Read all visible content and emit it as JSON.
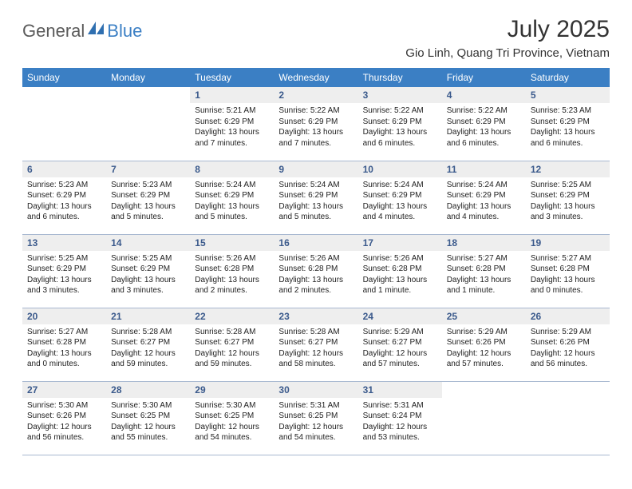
{
  "logo": {
    "general": "General",
    "blue": "Blue"
  },
  "title": "July 2025",
  "location": "Gio Linh, Quang Tri Province, Vietnam",
  "header_bg": "#3b7fc4",
  "daynum_bg": "#eeeeee",
  "daynum_color": "#3b5a8c",
  "row_border": "#a8b8d0",
  "weekdays": [
    "Sunday",
    "Monday",
    "Tuesday",
    "Wednesday",
    "Thursday",
    "Friday",
    "Saturday"
  ],
  "weeks": [
    [
      null,
      null,
      {
        "n": "1",
        "sr": "5:21 AM",
        "ss": "6:29 PM",
        "dl": "13 hours and 7 minutes."
      },
      {
        "n": "2",
        "sr": "5:22 AM",
        "ss": "6:29 PM",
        "dl": "13 hours and 7 minutes."
      },
      {
        "n": "3",
        "sr": "5:22 AM",
        "ss": "6:29 PM",
        "dl": "13 hours and 6 minutes."
      },
      {
        "n": "4",
        "sr": "5:22 AM",
        "ss": "6:29 PM",
        "dl": "13 hours and 6 minutes."
      },
      {
        "n": "5",
        "sr": "5:23 AM",
        "ss": "6:29 PM",
        "dl": "13 hours and 6 minutes."
      }
    ],
    [
      {
        "n": "6",
        "sr": "5:23 AM",
        "ss": "6:29 PM",
        "dl": "13 hours and 6 minutes."
      },
      {
        "n": "7",
        "sr": "5:23 AM",
        "ss": "6:29 PM",
        "dl": "13 hours and 5 minutes."
      },
      {
        "n": "8",
        "sr": "5:24 AM",
        "ss": "6:29 PM",
        "dl": "13 hours and 5 minutes."
      },
      {
        "n": "9",
        "sr": "5:24 AM",
        "ss": "6:29 PM",
        "dl": "13 hours and 5 minutes."
      },
      {
        "n": "10",
        "sr": "5:24 AM",
        "ss": "6:29 PM",
        "dl": "13 hours and 4 minutes."
      },
      {
        "n": "11",
        "sr": "5:24 AM",
        "ss": "6:29 PM",
        "dl": "13 hours and 4 minutes."
      },
      {
        "n": "12",
        "sr": "5:25 AM",
        "ss": "6:29 PM",
        "dl": "13 hours and 3 minutes."
      }
    ],
    [
      {
        "n": "13",
        "sr": "5:25 AM",
        "ss": "6:29 PM",
        "dl": "13 hours and 3 minutes."
      },
      {
        "n": "14",
        "sr": "5:25 AM",
        "ss": "6:29 PM",
        "dl": "13 hours and 3 minutes."
      },
      {
        "n": "15",
        "sr": "5:26 AM",
        "ss": "6:28 PM",
        "dl": "13 hours and 2 minutes."
      },
      {
        "n": "16",
        "sr": "5:26 AM",
        "ss": "6:28 PM",
        "dl": "13 hours and 2 minutes."
      },
      {
        "n": "17",
        "sr": "5:26 AM",
        "ss": "6:28 PM",
        "dl": "13 hours and 1 minute."
      },
      {
        "n": "18",
        "sr": "5:27 AM",
        "ss": "6:28 PM",
        "dl": "13 hours and 1 minute."
      },
      {
        "n": "19",
        "sr": "5:27 AM",
        "ss": "6:28 PM",
        "dl": "13 hours and 0 minutes."
      }
    ],
    [
      {
        "n": "20",
        "sr": "5:27 AM",
        "ss": "6:28 PM",
        "dl": "13 hours and 0 minutes."
      },
      {
        "n": "21",
        "sr": "5:28 AM",
        "ss": "6:27 PM",
        "dl": "12 hours and 59 minutes."
      },
      {
        "n": "22",
        "sr": "5:28 AM",
        "ss": "6:27 PM",
        "dl": "12 hours and 59 minutes."
      },
      {
        "n": "23",
        "sr": "5:28 AM",
        "ss": "6:27 PM",
        "dl": "12 hours and 58 minutes."
      },
      {
        "n": "24",
        "sr": "5:29 AM",
        "ss": "6:27 PM",
        "dl": "12 hours and 57 minutes."
      },
      {
        "n": "25",
        "sr": "5:29 AM",
        "ss": "6:26 PM",
        "dl": "12 hours and 57 minutes."
      },
      {
        "n": "26",
        "sr": "5:29 AM",
        "ss": "6:26 PM",
        "dl": "12 hours and 56 minutes."
      }
    ],
    [
      {
        "n": "27",
        "sr": "5:30 AM",
        "ss": "6:26 PM",
        "dl": "12 hours and 56 minutes."
      },
      {
        "n": "28",
        "sr": "5:30 AM",
        "ss": "6:25 PM",
        "dl": "12 hours and 55 minutes."
      },
      {
        "n": "29",
        "sr": "5:30 AM",
        "ss": "6:25 PM",
        "dl": "12 hours and 54 minutes."
      },
      {
        "n": "30",
        "sr": "5:31 AM",
        "ss": "6:25 PM",
        "dl": "12 hours and 54 minutes."
      },
      {
        "n": "31",
        "sr": "5:31 AM",
        "ss": "6:24 PM",
        "dl": "12 hours and 53 minutes."
      },
      null,
      null
    ]
  ]
}
